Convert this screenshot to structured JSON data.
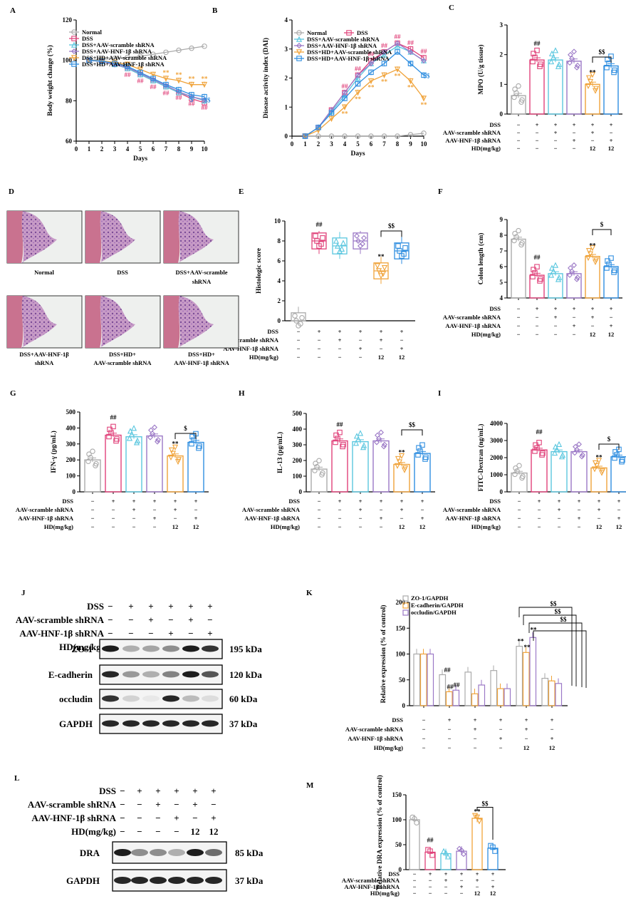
{
  "colors": {
    "normal": "#aaaaaa",
    "dss": "#e0427a",
    "scr": "#5bc7df",
    "hnf": "#9b78c6",
    "hd": "#f0a33a",
    "hdhnf": "#2f8ee0"
  },
  "panels": {
    "A": "A",
    "B": "B",
    "C": "C",
    "D": "D",
    "E": "E",
    "F": "F",
    "G": "G",
    "H": "H",
    "I": "I",
    "J": "J",
    "K": "K",
    "L": "L",
    "M": "M"
  },
  "groups": {
    "normal": "Normal",
    "dss": "DSS",
    "scr": "DSS+AAV-scramble shRNA",
    "hnf": "DSS+AAV-HNF-1β shRNA",
    "hd": "DSS+HD+AAV-scramble shRNA",
    "hdhnf": "DSS+HD+AAV-HNF-1β shRNA"
  },
  "rowlabels": [
    "DSS",
    "AAV-scramble shRNA",
    "AAV-HNF-1β shRNA",
    "HD(mg/kg)"
  ],
  "grid": [
    [
      "−",
      "+",
      "+",
      "+",
      "+",
      "+"
    ],
    [
      "−",
      "−",
      "+",
      "−",
      "+",
      "−"
    ],
    [
      "−",
      "−",
      "−",
      "+",
      "−",
      "+"
    ],
    [
      "−",
      "−",
      "−",
      "−",
      "12",
      "12"
    ]
  ],
  "gridBand": [
    [
      "−",
      "+",
      "+",
      "+",
      "+",
      "+"
    ],
    [
      "−",
      "−",
      "+",
      "−",
      "+",
      "−"
    ],
    [
      "−",
      "−",
      "−",
      "+",
      "−",
      "+"
    ],
    [
      "−",
      "−",
      "−",
      "−",
      "12",
      "12"
    ]
  ],
  "marks": {
    "hash": "##",
    "star": "**",
    "dollar": "$",
    "ddollar": "$$"
  },
  "D": {
    "captions": [
      "Normal",
      "DSS",
      "DSS+AAV-scramble shRNA",
      "DSS+AAV-HNF-1β shRNA",
      "DSS+HD+ AAV-scramble shRNA",
      "DSS+HD+ AAV-HNF-1β shRNA"
    ],
    "c1": "Normal",
    "c2": "DSS",
    "c3a": "DSS+AAV-scramble",
    "c3b": "shRNA",
    "c4a": "DSS+AAV-HNF-1β",
    "c4b": "shRNA",
    "c5a": "DSS+HD+",
    "c5b": "AAV-scramble shRNA",
    "c6a": "DSS+HD+",
    "c6b": "AAV-HNF-1β shRNA"
  },
  "J": {
    "proteins": [
      "ZO-1",
      "E-cadherin",
      "occludin",
      "GAPDH"
    ],
    "kda": [
      "195 kDa",
      "120 kDa",
      "60 kDa",
      "37 kDa"
    ]
  },
  "L": {
    "proteins": [
      "DRA",
      "GAPDH"
    ],
    "kda": [
      "85 kDa",
      "37 kDa"
    ]
  },
  "chart_data": [
    {
      "panel": "A",
      "type": "line",
      "xlabel": "Days",
      "ylabel": "Body weight change (%)",
      "ylim": [
        60,
        120
      ],
      "yticks": [
        60,
        80,
        100,
        120
      ],
      "x": [
        1,
        2,
        3,
        4,
        5,
        6,
        7,
        8,
        9,
        10
      ],
      "series": [
        {
          "name": "Normal",
          "values": [
            100,
            100.5,
            101,
            101.5,
            102,
            103,
            104,
            105,
            106,
            107
          ]
        },
        {
          "name": "DSS",
          "values": [
            100,
            99.5,
            98,
            96,
            93,
            90,
            87,
            84,
            81,
            79
          ]
        },
        {
          "name": "DSS+AAV-scramble shRNA",
          "values": [
            100,
            99.5,
            98,
            96,
            93,
            90,
            87,
            84,
            82,
            80
          ]
        },
        {
          "name": "DSS+AAV-HNF-1β shRNA",
          "values": [
            100,
            99.5,
            98,
            96.5,
            93.5,
            90.5,
            87.5,
            84.5,
            82,
            80.5
          ]
        },
        {
          "name": "DSS+HD+AAV-scramble shRNA",
          "values": [
            100,
            99.8,
            99,
            98,
            95.5,
            93,
            91,
            90,
            88,
            88
          ]
        },
        {
          "name": "DSS+HD+AAV-HNF-1β shRNA",
          "values": [
            100,
            99.6,
            98.5,
            97,
            94,
            91,
            88,
            85.5,
            83,
            82
          ]
        }
      ]
    },
    {
      "panel": "B",
      "type": "line",
      "xlabel": "Days",
      "ylabel": "Disease activity index (DAI)",
      "ylim": [
        0,
        4
      ],
      "yticks": [
        0,
        1,
        2,
        3,
        4
      ],
      "x": [
        1,
        2,
        3,
        4,
        5,
        6,
        7,
        8,
        9,
        10
      ],
      "series": [
        {
          "name": "Normal",
          "values": [
            0,
            0,
            0,
            0,
            0,
            0,
            0,
            0,
            0.05,
            0.1
          ]
        },
        {
          "name": "DSS",
          "values": [
            0,
            0.3,
            0.9,
            1.5,
            2.1,
            2.6,
            2.9,
            3.2,
            3.0,
            2.7
          ]
        },
        {
          "name": "DSS+AAV-scramble shRNA",
          "values": [
            0,
            0.3,
            0.85,
            1.4,
            2.0,
            2.5,
            2.8,
            3.1,
            2.9,
            2.6
          ]
        },
        {
          "name": "DSS+AAV-HNF-1β shRNA",
          "values": [
            0,
            0.3,
            0.9,
            1.5,
            2.1,
            2.5,
            2.9,
            3.2,
            2.9,
            2.6
          ]
        },
        {
          "name": "DSS+HD+AAV-scramble shRNA",
          "values": [
            0,
            0.2,
            0.6,
            1.0,
            1.5,
            1.9,
            2.1,
            2.3,
            1.9,
            1.3
          ]
        },
        {
          "name": "DSS+HD+AAV-HNF-1β shRNA",
          "values": [
            0,
            0.3,
            0.8,
            1.3,
            1.8,
            2.2,
            2.5,
            2.9,
            2.5,
            2.1
          ]
        }
      ]
    },
    {
      "panel": "C",
      "type": "bar",
      "ylabel": "MPO (U/g tissue)",
      "ylim": [
        0,
        3
      ],
      "yticks": [
        0,
        1,
        2,
        3
      ],
      "values": [
        0.62,
        1.82,
        1.82,
        1.78,
        1.0,
        1.62
      ]
    },
    {
      "panel": "E",
      "type": "box",
      "ylabel": "Histologic score",
      "ylim": [
        0,
        10
      ],
      "yticks": [
        0,
        2,
        4,
        6,
        8,
        10
      ],
      "medians": [
        0,
        8,
        7.5,
        8,
        5,
        7
      ]
    },
    {
      "panel": "F",
      "type": "bar",
      "ylabel": "Colon length (cm)",
      "ylim": [
        4,
        9
      ],
      "yticks": [
        4,
        5,
        6,
        7,
        8,
        9
      ],
      "values": [
        7.75,
        5.45,
        5.55,
        5.55,
        6.65,
        6.0
      ]
    },
    {
      "panel": "G",
      "type": "bar",
      "ylabel": "IFN-γ (pg/mL)",
      "ylim": [
        0,
        500
      ],
      "yticks": [
        0,
        100,
        200,
        300,
        400,
        500
      ],
      "values": [
        200,
        355,
        345,
        350,
        225,
        310
      ]
    },
    {
      "panel": "H",
      "type": "bar",
      "ylabel": "IL-13 (pg/mL)",
      "ylim": [
        0,
        500
      ],
      "yticks": [
        0,
        100,
        200,
        300,
        400,
        500
      ],
      "values": [
        145,
        325,
        320,
        325,
        175,
        245
      ]
    },
    {
      "panel": "I",
      "type": "bar",
      "ylabel": "FITC-Dextran (ng/mL)",
      "ylim": [
        0,
        4000
      ],
      "yticks": [
        0,
        1000,
        2000,
        3000,
        4000
      ],
      "values": [
        1100,
        2450,
        2350,
        2350,
        1400,
        2050
      ]
    },
    {
      "panel": "K",
      "type": "bar",
      "ylabel": "Relative expression (% of control)",
      "ylim": [
        0,
        200
      ],
      "yticks": [
        0,
        50,
        100,
        150,
        200
      ],
      "categories": [
        "1",
        "2",
        "3",
        "4",
        "5",
        "6"
      ],
      "series": [
        {
          "name": "ZO-1/GAPDH",
          "values": [
            100,
            60,
            65,
            68,
            115,
            53
          ]
        },
        {
          "name": "E-cadherin/GAPDH",
          "values": [
            100,
            27,
            23,
            33,
            103,
            48
          ]
        },
        {
          "name": "occludin/GAPDH",
          "values": [
            100,
            30,
            40,
            33,
            132,
            43
          ]
        }
      ]
    },
    {
      "panel": "M",
      "type": "bar",
      "ylabel": "Relative DRA expression (% of control)",
      "ylim": [
        0,
        150
      ],
      "yticks": [
        0,
        50,
        100,
        150
      ],
      "values": [
        100,
        35,
        32,
        37,
        103,
        43
      ]
    }
  ]
}
